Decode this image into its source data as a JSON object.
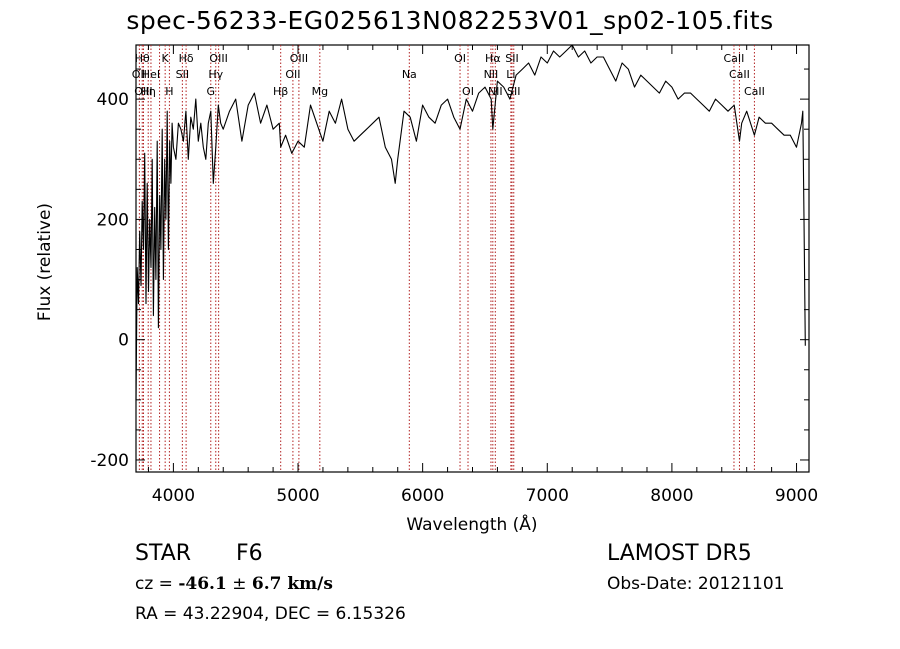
{
  "chart_data": {
    "type": "line",
    "title": "spec-56233-EG025613N082253V01_sp02-105.fits",
    "xlabel": "Wavelength (Å)",
    "ylabel": "Flux (relative)",
    "xlim": [
      3700,
      9100
    ],
    "ylim": [
      -220,
      490
    ],
    "x_ticks": [
      4000,
      5000,
      6000,
      7000,
      8000,
      9000
    ],
    "y_ticks": [
      -200,
      0,
      200,
      400
    ],
    "grid": false,
    "line_color": "#000000",
    "marker_color": "#b22222",
    "series": [
      {
        "x": [
          3700,
          3710,
          3720,
          3730,
          3740,
          3750,
          3760,
          3770,
          3780,
          3790,
          3800,
          3810,
          3820,
          3830,
          3840,
          3850,
          3860,
          3870,
          3880,
          3890,
          3900,
          3910,
          3920,
          3930,
          3940,
          3950,
          3960,
          3970,
          3980,
          3990,
          4000,
          4020,
          4040,
          4060,
          4080,
          4100,
          4120,
          4140,
          4160,
          4180,
          4200,
          4220,
          4240,
          4260,
          4280,
          4300,
          4320,
          4340,
          4360,
          4380,
          4400,
          4450,
          4500,
          4550,
          4600,
          4650,
          4700,
          4750,
          4800,
          4850,
          4861,
          4900,
          4950,
          5000,
          5050,
          5100,
          5150,
          5200,
          5250,
          5300,
          5350,
          5400,
          5450,
          5500,
          5550,
          5600,
          5650,
          5700,
          5750,
          5780,
          5800,
          5850,
          5900,
          5950,
          6000,
          6050,
          6100,
          6150,
          6200,
          6250,
          6300,
          6350,
          6400,
          6450,
          6500,
          6550,
          6563,
          6600,
          6650,
          6700,
          6750,
          6800,
          6850,
          6900,
          6950,
          7000,
          7050,
          7100,
          7150,
          7200,
          7250,
          7300,
          7350,
          7400,
          7450,
          7500,
          7550,
          7600,
          7650,
          7700,
          7750,
          7800,
          7850,
          7900,
          7950,
          8000,
          8050,
          8100,
          8150,
          8200,
          8250,
          8300,
          8350,
          8400,
          8450,
          8500,
          8542,
          8560,
          8600,
          8662,
          8700,
          8750,
          8800,
          8850,
          8900,
          8950,
          9000,
          9020,
          9040,
          9050,
          9060,
          9070
        ],
        "y": [
          -100,
          120,
          60,
          180,
          90,
          230,
          150,
          310,
          60,
          260,
          80,
          200,
          120,
          300,
          40,
          220,
          100,
          330,
          20,
          240,
          150,
          350,
          100,
          300,
          200,
          380,
          150,
          330,
          260,
          360,
          320,
          300,
          360,
          350,
          330,
          380,
          300,
          370,
          350,
          400,
          330,
          360,
          320,
          300,
          360,
          380,
          260,
          320,
          390,
          360,
          350,
          380,
          400,
          330,
          390,
          410,
          360,
          390,
          350,
          360,
          320,
          340,
          310,
          330,
          320,
          390,
          360,
          330,
          380,
          360,
          400,
          350,
          330,
          340,
          350,
          360,
          370,
          320,
          300,
          260,
          300,
          380,
          370,
          330,
          390,
          370,
          360,
          390,
          400,
          370,
          350,
          400,
          380,
          410,
          420,
          400,
          350,
          430,
          420,
          400,
          440,
          450,
          460,
          440,
          470,
          460,
          480,
          470,
          480,
          490,
          470,
          480,
          460,
          470,
          470,
          450,
          430,
          460,
          450,
          420,
          440,
          430,
          420,
          410,
          430,
          420,
          400,
          410,
          410,
          400,
          390,
          380,
          400,
          390,
          380,
          390,
          330,
          360,
          380,
          340,
          370,
          360,
          360,
          350,
          340,
          340,
          320,
          340,
          360,
          380,
          200,
          -10
        ]
      }
    ],
    "line_markers": [
      {
        "x": 3727,
        "label": "OII",
        "row": 1
      },
      {
        "x": 3750,
        "label": "Hθ",
        "row": 0
      },
      {
        "x": 3760,
        "label": "OIII",
        "row": 2
      },
      {
        "x": 3798,
        "label": "Hη",
        "row": 2
      },
      {
        "x": 3820,
        "label": "HeI",
        "row": 1
      },
      {
        "x": 3889,
        "label": "",
        "row": -1
      },
      {
        "x": 3934,
        "label": "K",
        "row": 0
      },
      {
        "x": 3968,
        "label": "H",
        "row": 2
      },
      {
        "x": 4072,
        "label": "SII",
        "row": 1
      },
      {
        "x": 4102,
        "label": "Hδ",
        "row": 0
      },
      {
        "x": 4300,
        "label": "G",
        "row": 2
      },
      {
        "x": 4340,
        "label": "Hγ",
        "row": 1
      },
      {
        "x": 4363,
        "label": "OIII",
        "row": 0
      },
      {
        "x": 4861,
        "label": "Hβ",
        "row": 2
      },
      {
        "x": 4959,
        "label": "OII",
        "row": 1
      },
      {
        "x": 5007,
        "label": "OIII",
        "row": 0
      },
      {
        "x": 5175,
        "label": "Mg",
        "row": 2
      },
      {
        "x": 5893,
        "label": "Na",
        "row": 1
      },
      {
        "x": 6300,
        "label": "OI",
        "row": 0
      },
      {
        "x": 6364,
        "label": "OI",
        "row": 2
      },
      {
        "x": 6548,
        "label": "NII",
        "row": 1
      },
      {
        "x": 6563,
        "label": "Hα",
        "row": 0
      },
      {
        "x": 6583,
        "label": "NII",
        "row": 2
      },
      {
        "x": 6708,
        "label": "Li",
        "row": 1
      },
      {
        "x": 6717,
        "label": "SII",
        "row": 0
      },
      {
        "x": 6731,
        "label": "SII",
        "row": 2
      },
      {
        "x": 8498,
        "label": "CaII",
        "row": 0
      },
      {
        "x": 8542,
        "label": "CaII",
        "row": 1
      },
      {
        "x": 8662,
        "label": "CaII",
        "row": 2
      }
    ]
  },
  "info": {
    "object_class": "STAR",
    "subclass": "F6",
    "survey": "LAMOST DR5",
    "cz_label": "cz = ",
    "cz_value": "-46.1",
    "cz_pm": " ± ",
    "cz_error": "6.7",
    "cz_unit": " km/s",
    "obs_date": "Obs-Date: 20121101",
    "radec": "RA =  43.22904, DEC =   6.15326"
  }
}
